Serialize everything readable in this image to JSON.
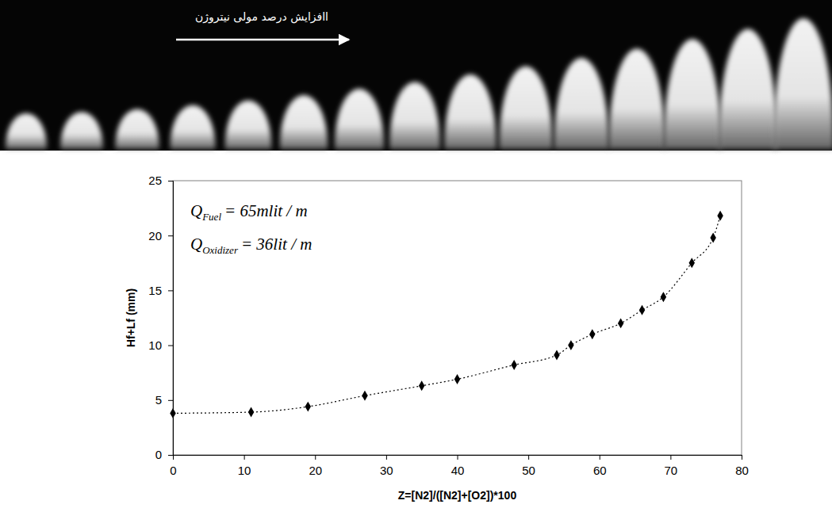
{
  "chart_data": {
    "type": "line",
    "strip_label": "اافزایش درصد مولی نیتروژن",
    "x_label": "Z=[N2]/([N2]+[O2])*100",
    "y_label": "Hf+Lf (mm)",
    "annotations": [
      {
        "symbol": "Q",
        "subscript": "Fuel",
        "text": "= 65mlit / m"
      },
      {
        "symbol": "Q",
        "subscript": "Oxidizer",
        "text": "= 36lit / m"
      }
    ],
    "x": [
      0,
      11,
      19,
      27,
      35,
      40,
      48,
      54,
      56,
      59,
      63,
      66,
      69,
      73,
      76,
      77
    ],
    "values": [
      3.8,
      3.9,
      4.4,
      5.4,
      6.3,
      6.9,
      8.2,
      9.1,
      10.0,
      11.0,
      12.0,
      13.2,
      14.4,
      17.5,
      19.8,
      21.8
    ],
    "color": "#000000",
    "marker": "diamond",
    "line_style": "dotted",
    "xlim": [
      0,
      80
    ],
    "ylim": [
      0,
      25
    ],
    "xticks": [
      0,
      10,
      20,
      30,
      40,
      50,
      60,
      70,
      80
    ],
    "yticks": [
      0,
      5,
      10,
      15,
      20,
      25
    ],
    "grid": false
  }
}
